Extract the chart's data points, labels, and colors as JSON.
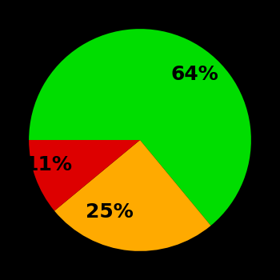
{
  "slices": [
    64,
    25,
    11
  ],
  "colors": [
    "#00dd00",
    "#ffaa00",
    "#dd0000"
  ],
  "labels": [
    "64%",
    "25%",
    "11%"
  ],
  "background_color": "#000000",
  "startangle": 180,
  "figsize": [
    3.5,
    3.5
  ],
  "dpi": 100,
  "label_fontsize": 18,
  "label_fontweight": "bold"
}
